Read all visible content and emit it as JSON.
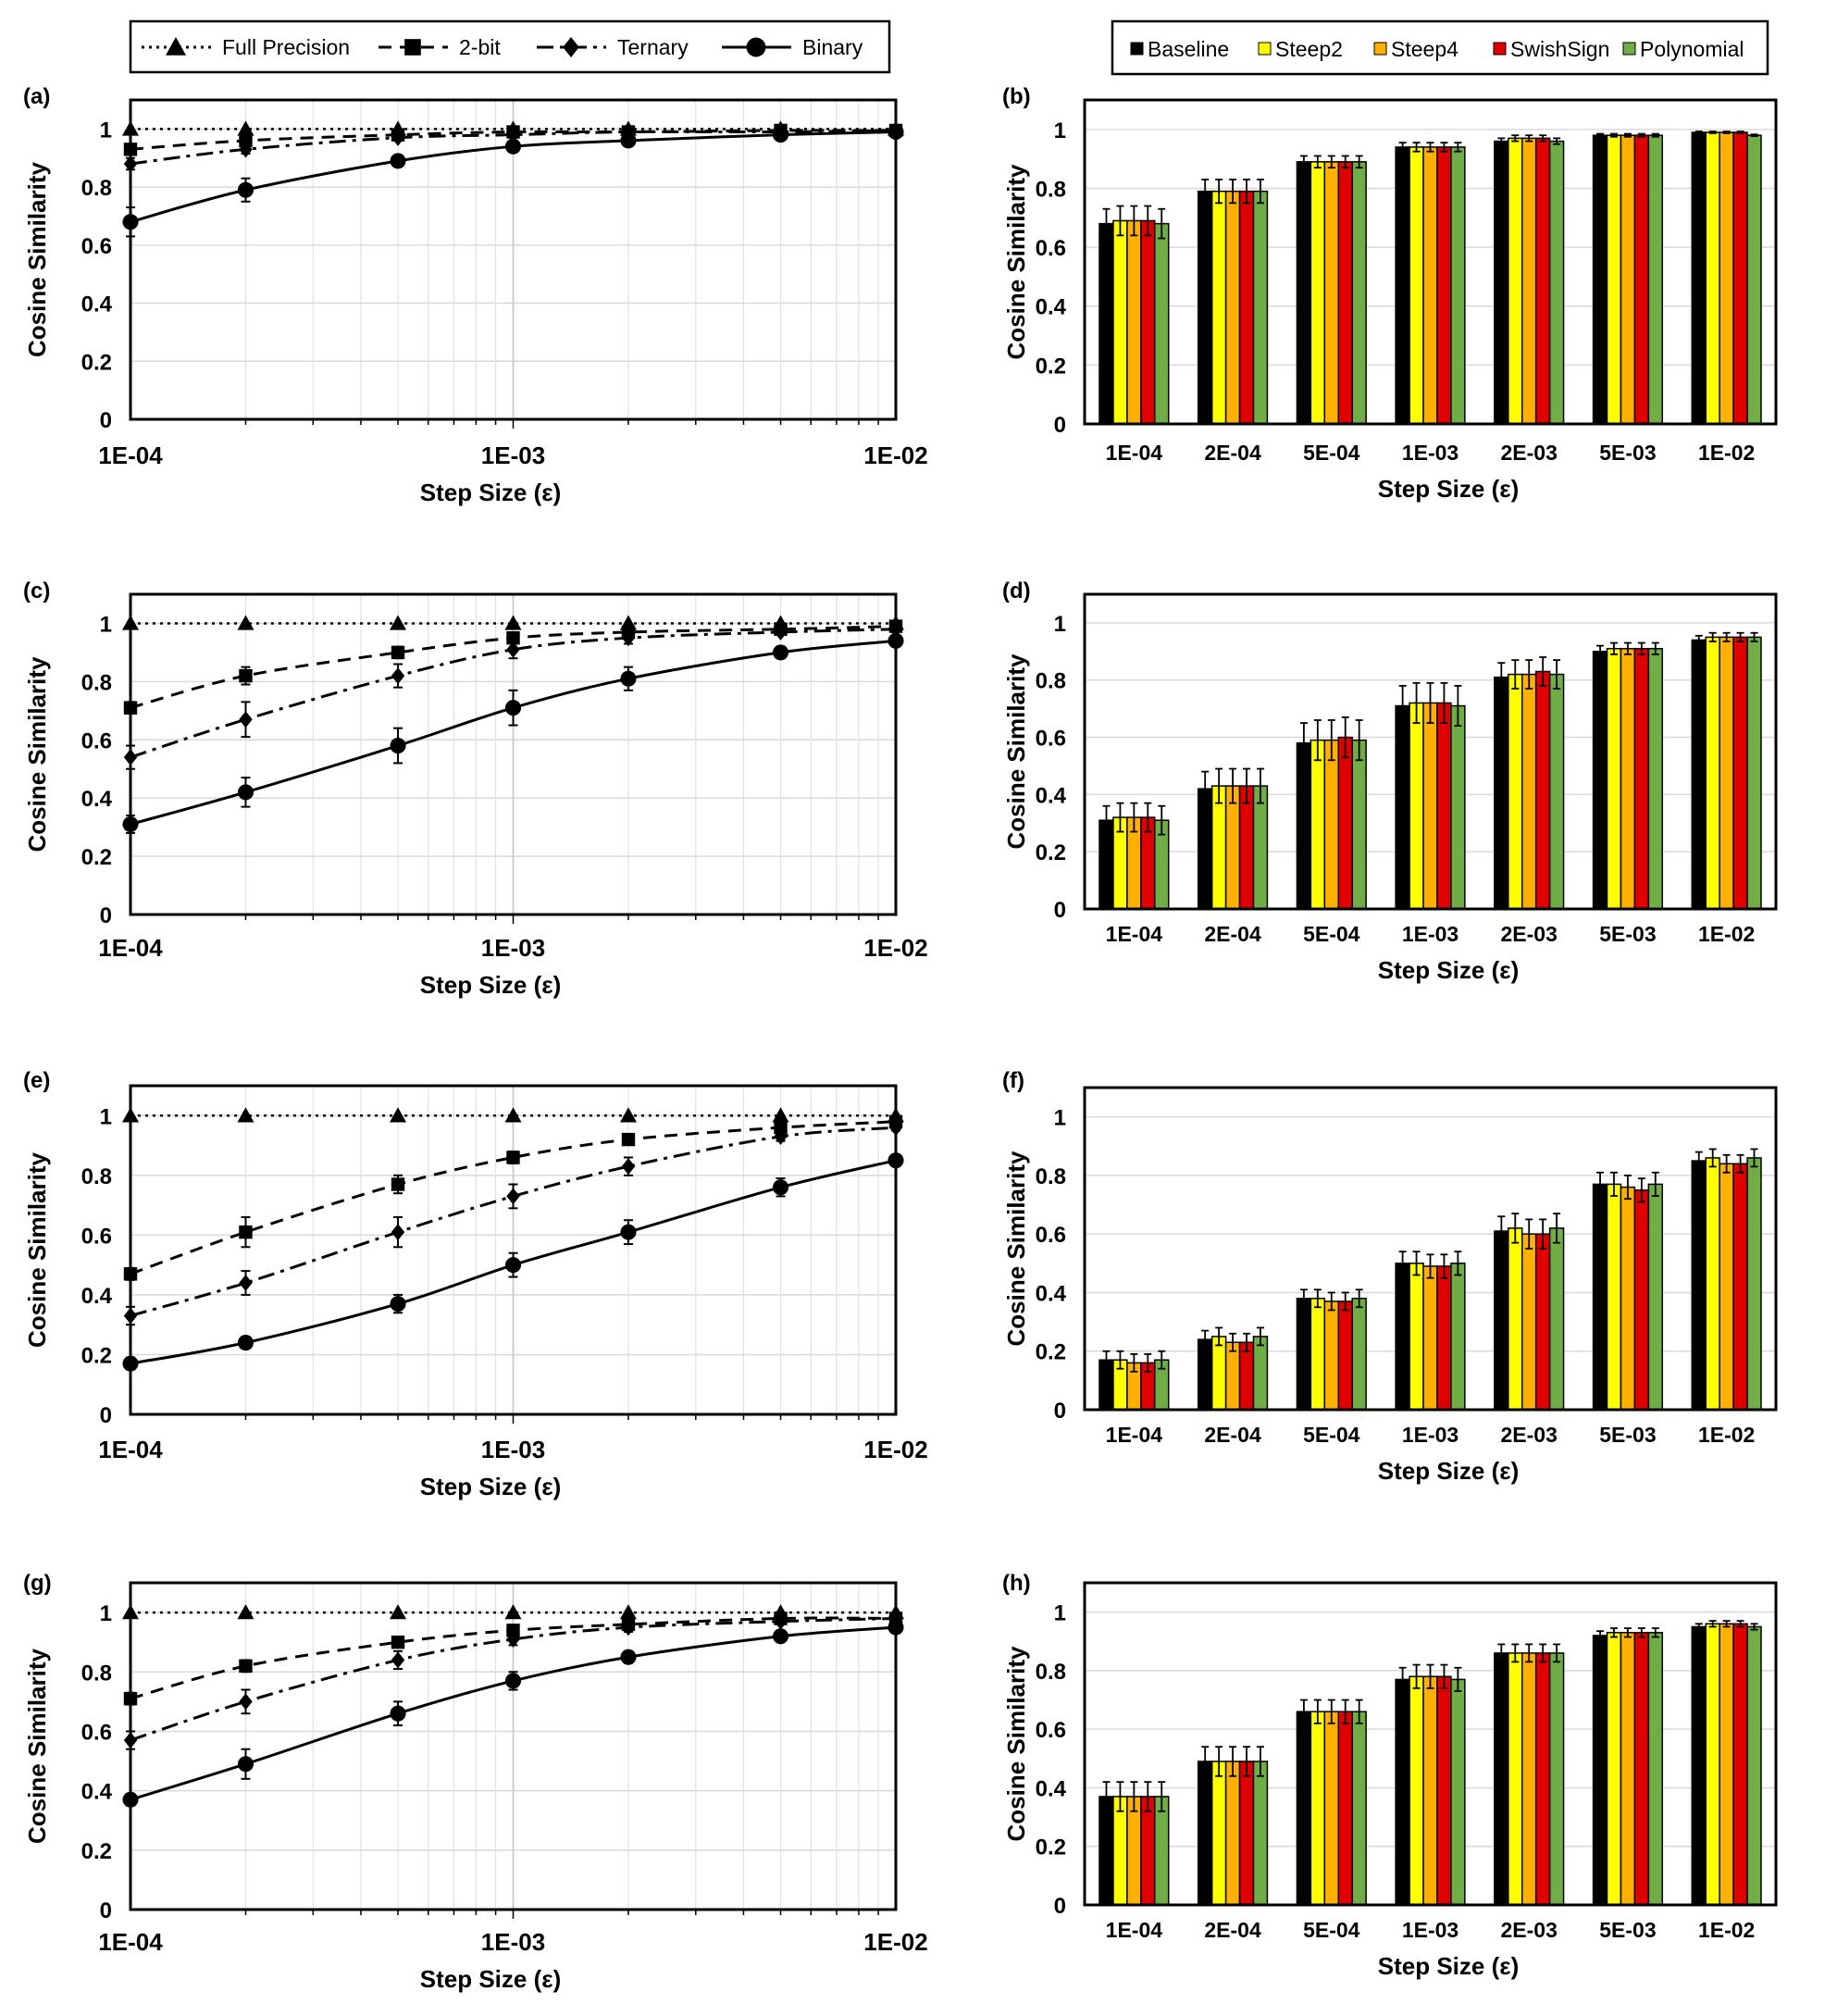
{
  "legends": {
    "lines": [
      {
        "name": "Full Precision",
        "marker": "triangle",
        "dash": "dotted"
      },
      {
        "name": "2-bit",
        "marker": "square",
        "dash": "dash"
      },
      {
        "name": "Ternary",
        "marker": "diamond",
        "dash": "dashdot"
      },
      {
        "name": "Binary",
        "marker": "circle",
        "dash": "solid"
      }
    ],
    "bars": [
      {
        "name": "Baseline",
        "color": "#000000"
      },
      {
        "name": "Steep2",
        "color": "#FFFF00"
      },
      {
        "name": "Steep4",
        "color": "#FFB000"
      },
      {
        "name": "SwishSign",
        "color": "#E00000"
      },
      {
        "name": "Polynomial",
        "color": "#70AD47"
      }
    ]
  },
  "chart_data": [
    {
      "panel": "(a)",
      "type": "line",
      "xscale": "log",
      "xlabel": "Step Size (ε)",
      "ylabel": "Cosine Similarity",
      "xlim": [
        0.0001,
        0.01
      ],
      "ylim": [
        0,
        1.1
      ],
      "xtick_labels": [
        "1E-04",
        "1E-03",
        "1E-02"
      ],
      "ytick_labels": [
        "0",
        "0.2",
        "0.4",
        "0.6",
        "0.8",
        "1"
      ],
      "grid": true,
      "x": [
        0.0001,
        0.0002,
        0.0005,
        0.001,
        0.002,
        0.005,
        0.01
      ],
      "series": [
        {
          "name": "Full Precision",
          "values": [
            1,
            1,
            1,
            1,
            1,
            1,
            1
          ],
          "err": [
            0,
            0,
            0,
            0,
            0,
            0,
            0
          ]
        },
        {
          "name": "2-bit",
          "values": [
            0.93,
            0.96,
            0.98,
            0.99,
            0.99,
            0.995,
            0.995
          ],
          "err": [
            0.01,
            0.01,
            0.005,
            0.005,
            0.003,
            0.002,
            0.002
          ]
        },
        {
          "name": "Ternary",
          "values": [
            0.88,
            0.93,
            0.97,
            0.98,
            0.99,
            0.99,
            0.995
          ],
          "err": [
            0.02,
            0.015,
            0.01,
            0.005,
            0.005,
            0.003,
            0.002
          ]
        },
        {
          "name": "Binary",
          "values": [
            0.68,
            0.79,
            0.89,
            0.94,
            0.96,
            0.98,
            0.99
          ],
          "err": [
            0.05,
            0.04,
            0.02,
            0.015,
            0.01,
            0.005,
            0.003
          ]
        }
      ]
    },
    {
      "panel": "(b)",
      "type": "bar",
      "xlabel": "Step Size (ε)",
      "ylabel": "Cosine Similarity",
      "ylim": [
        0,
        1.1
      ],
      "ytick_labels": [
        "0",
        "0.2",
        "0.4",
        "0.6",
        "0.8",
        "1"
      ],
      "grid": true,
      "categories": [
        "1E-04",
        "2E-04",
        "5E-04",
        "1E-03",
        "2E-03",
        "5E-03",
        "1E-02"
      ],
      "series": [
        {
          "name": "Baseline",
          "values": [
            0.68,
            0.79,
            0.89,
            0.94,
            0.96,
            0.98,
            0.99
          ],
          "err": [
            0.05,
            0.04,
            0.02,
            0.015,
            0.01,
            0.005,
            0.003
          ]
        },
        {
          "name": "Steep2",
          "values": [
            0.69,
            0.79,
            0.89,
            0.94,
            0.97,
            0.98,
            0.99
          ],
          "err": [
            0.05,
            0.04,
            0.02,
            0.015,
            0.01,
            0.005,
            0.003
          ]
        },
        {
          "name": "Steep4",
          "values": [
            0.69,
            0.79,
            0.89,
            0.94,
            0.97,
            0.98,
            0.99
          ],
          "err": [
            0.05,
            0.04,
            0.02,
            0.015,
            0.01,
            0.005,
            0.003
          ]
        },
        {
          "name": "SwishSign",
          "values": [
            0.69,
            0.79,
            0.89,
            0.94,
            0.97,
            0.98,
            0.99
          ],
          "err": [
            0.05,
            0.04,
            0.02,
            0.015,
            0.01,
            0.005,
            0.003
          ]
        },
        {
          "name": "Polynomial",
          "values": [
            0.68,
            0.79,
            0.89,
            0.94,
            0.96,
            0.98,
            0.98
          ],
          "err": [
            0.05,
            0.04,
            0.02,
            0.015,
            0.01,
            0.005,
            0.003
          ]
        }
      ]
    },
    {
      "panel": "(c)",
      "type": "line",
      "xscale": "log",
      "xlabel": "Step Size (ε)",
      "ylabel": "Cosine Similarity",
      "xlim": [
        0.0001,
        0.01
      ],
      "ylim": [
        0,
        1.1
      ],
      "xtick_labels": [
        "1E-04",
        "1E-03",
        "1E-02"
      ],
      "ytick_labels": [
        "0",
        "0.2",
        "0.4",
        "0.6",
        "0.8",
        "1"
      ],
      "grid": true,
      "x": [
        0.0001,
        0.0002,
        0.0005,
        0.001,
        0.002,
        0.005,
        0.01
      ],
      "series": [
        {
          "name": "Full Precision",
          "values": [
            1,
            1,
            1,
            1,
            1,
            1,
            1
          ],
          "err": [
            0,
            0,
            0,
            0,
            0,
            0,
            0
          ]
        },
        {
          "name": "2-bit",
          "values": [
            0.71,
            0.82,
            0.9,
            0.95,
            0.97,
            0.98,
            0.99
          ],
          "err": [
            0.02,
            0.03,
            0.02,
            0.015,
            0.01,
            0.005,
            0.003
          ]
        },
        {
          "name": "Ternary",
          "values": [
            0.54,
            0.67,
            0.82,
            0.91,
            0.95,
            0.97,
            0.98
          ],
          "err": [
            0.04,
            0.06,
            0.04,
            0.03,
            0.02,
            0.01,
            0.005
          ]
        },
        {
          "name": "Binary",
          "values": [
            0.31,
            0.42,
            0.58,
            0.71,
            0.81,
            0.9,
            0.94
          ],
          "err": [
            0.03,
            0.05,
            0.06,
            0.06,
            0.04,
            0.02,
            0.01
          ]
        }
      ]
    },
    {
      "panel": "(d)",
      "type": "bar",
      "xlabel": "Step Size (ε)",
      "ylabel": "Cosine Similarity",
      "ylim": [
        0,
        1.1
      ],
      "ytick_labels": [
        "0",
        "0.2",
        "0.4",
        "0.6",
        "0.8",
        "1"
      ],
      "grid": true,
      "categories": [
        "1E-04",
        "2E-04",
        "5E-04",
        "1E-03",
        "2E-03",
        "5E-03",
        "1E-02"
      ],
      "series": [
        {
          "name": "Baseline",
          "values": [
            0.31,
            0.42,
            0.58,
            0.71,
            0.81,
            0.9,
            0.94
          ],
          "err": [
            0.05,
            0.06,
            0.07,
            0.07,
            0.05,
            0.02,
            0.015
          ]
        },
        {
          "name": "Steep2",
          "values": [
            0.32,
            0.43,
            0.59,
            0.72,
            0.82,
            0.91,
            0.95
          ],
          "err": [
            0.05,
            0.06,
            0.07,
            0.07,
            0.05,
            0.02,
            0.015
          ]
        },
        {
          "name": "Steep4",
          "values": [
            0.32,
            0.43,
            0.59,
            0.72,
            0.82,
            0.91,
            0.95
          ],
          "err": [
            0.05,
            0.06,
            0.07,
            0.07,
            0.05,
            0.02,
            0.015
          ]
        },
        {
          "name": "SwishSign",
          "values": [
            0.32,
            0.43,
            0.6,
            0.72,
            0.83,
            0.91,
            0.95
          ],
          "err": [
            0.05,
            0.06,
            0.07,
            0.07,
            0.05,
            0.02,
            0.015
          ]
        },
        {
          "name": "Polynomial",
          "values": [
            0.31,
            0.43,
            0.59,
            0.71,
            0.82,
            0.91,
            0.95
          ],
          "err": [
            0.05,
            0.06,
            0.07,
            0.07,
            0.05,
            0.02,
            0.015
          ]
        }
      ]
    },
    {
      "panel": "(e)",
      "type": "line",
      "xscale": "log",
      "xlabel": "Step Size (ε)",
      "ylabel": "Cosine Similarity",
      "xlim": [
        0.0001,
        0.01
      ],
      "ylim": [
        0,
        1.1
      ],
      "xtick_labels": [
        "1E-04",
        "1E-03",
        "1E-02"
      ],
      "ytick_labels": [
        "0",
        "0.2",
        "0.4",
        "0.6",
        "0.8",
        "1"
      ],
      "grid": true,
      "x": [
        0.0001,
        0.0002,
        0.0005,
        0.001,
        0.002,
        0.005,
        0.01
      ],
      "series": [
        {
          "name": "Full Precision",
          "values": [
            1,
            1,
            1,
            1,
            1,
            1,
            1
          ],
          "err": [
            0,
            0,
            0,
            0,
            0,
            0,
            0
          ]
        },
        {
          "name": "2-bit",
          "values": [
            0.47,
            0.61,
            0.77,
            0.86,
            0.92,
            0.96,
            0.98
          ],
          "err": [
            0.02,
            0.05,
            0.03,
            0.02,
            0.015,
            0.01,
            0.005
          ]
        },
        {
          "name": "Ternary",
          "values": [
            0.33,
            0.44,
            0.61,
            0.73,
            0.83,
            0.93,
            0.96
          ],
          "err": [
            0.03,
            0.04,
            0.05,
            0.04,
            0.03,
            0.015,
            0.01
          ]
        },
        {
          "name": "Binary",
          "values": [
            0.17,
            0.24,
            0.37,
            0.5,
            0.61,
            0.76,
            0.85
          ],
          "err": [
            0.02,
            0.02,
            0.03,
            0.04,
            0.04,
            0.03,
            0.01
          ]
        }
      ]
    },
    {
      "panel": "(f)",
      "type": "bar",
      "xlabel": "Step Size (ε)",
      "ylabel": "Cosine Similarity",
      "ylim": [
        0,
        1.1
      ],
      "ytick_labels": [
        "0",
        "0.2",
        "0.4",
        "0.6",
        "0.8",
        "1"
      ],
      "grid": true,
      "categories": [
        "1E-04",
        "2E-04",
        "5E-04",
        "1E-03",
        "2E-03",
        "5E-03",
        "1E-02"
      ],
      "series": [
        {
          "name": "Baseline",
          "values": [
            0.17,
            0.24,
            0.38,
            0.5,
            0.61,
            0.77,
            0.85
          ],
          "err": [
            0.03,
            0.03,
            0.03,
            0.04,
            0.05,
            0.04,
            0.03
          ]
        },
        {
          "name": "Steep2",
          "values": [
            0.17,
            0.25,
            0.38,
            0.5,
            0.62,
            0.77,
            0.86
          ],
          "err": [
            0.03,
            0.03,
            0.03,
            0.04,
            0.05,
            0.04,
            0.03
          ]
        },
        {
          "name": "Steep4",
          "values": [
            0.16,
            0.23,
            0.37,
            0.49,
            0.6,
            0.76,
            0.84
          ],
          "err": [
            0.03,
            0.03,
            0.03,
            0.04,
            0.05,
            0.04,
            0.03
          ]
        },
        {
          "name": "SwishSign",
          "values": [
            0.16,
            0.23,
            0.37,
            0.49,
            0.6,
            0.75,
            0.84
          ],
          "err": [
            0.03,
            0.03,
            0.03,
            0.04,
            0.05,
            0.04,
            0.03
          ]
        },
        {
          "name": "Polynomial",
          "values": [
            0.17,
            0.25,
            0.38,
            0.5,
            0.62,
            0.77,
            0.86
          ],
          "err": [
            0.03,
            0.03,
            0.03,
            0.04,
            0.05,
            0.04,
            0.03
          ]
        }
      ]
    },
    {
      "panel": "(g)",
      "type": "line",
      "xscale": "log",
      "xlabel": "Step Size (ε)",
      "ylabel": "Cosine Similarity",
      "xlim": [
        0.0001,
        0.01
      ],
      "ylim": [
        0,
        1.1
      ],
      "xtick_labels": [
        "1E-04",
        "1E-03",
        "1E-02"
      ],
      "ytick_labels": [
        "0",
        "0.2",
        "0.4",
        "0.6",
        "0.8",
        "1"
      ],
      "grid": true,
      "x": [
        0.0001,
        0.0002,
        0.0005,
        0.001,
        0.002,
        0.005,
        0.01
      ],
      "series": [
        {
          "name": "Full Precision",
          "values": [
            1,
            1,
            1,
            1,
            1,
            1,
            1
          ],
          "err": [
            0,
            0,
            0,
            0,
            0,
            0,
            0
          ]
        },
        {
          "name": "2-bit",
          "values": [
            0.71,
            0.82,
            0.9,
            0.94,
            0.96,
            0.98,
            0.98
          ],
          "err": [
            0.02,
            0.02,
            0.015,
            0.01,
            0.01,
            0.005,
            0.003
          ]
        },
        {
          "name": "Ternary",
          "values": [
            0.57,
            0.7,
            0.84,
            0.91,
            0.95,
            0.97,
            0.98
          ],
          "err": [
            0.03,
            0.04,
            0.03,
            0.02,
            0.015,
            0.01,
            0.005
          ]
        },
        {
          "name": "Binary",
          "values": [
            0.37,
            0.49,
            0.66,
            0.77,
            0.85,
            0.92,
            0.95
          ],
          "err": [
            0.02,
            0.05,
            0.04,
            0.03,
            0.02,
            0.01,
            0.005
          ]
        }
      ]
    },
    {
      "panel": "(h)",
      "type": "bar",
      "xlabel": "Step Size (ε)",
      "ylabel": "Cosine Similarity",
      "ylim": [
        0,
        1.1
      ],
      "ytick_labels": [
        "0",
        "0.2",
        "0.4",
        "0.6",
        "0.8",
        "1"
      ],
      "grid": true,
      "categories": [
        "1E-04",
        "2E-04",
        "5E-04",
        "1E-03",
        "2E-03",
        "5E-03",
        "1E-02"
      ],
      "series": [
        {
          "name": "Baseline",
          "values": [
            0.37,
            0.49,
            0.66,
            0.77,
            0.86,
            0.92,
            0.95
          ],
          "err": [
            0.05,
            0.05,
            0.04,
            0.04,
            0.03,
            0.015,
            0.01
          ]
        },
        {
          "name": "Steep2",
          "values": [
            0.37,
            0.49,
            0.66,
            0.78,
            0.86,
            0.93,
            0.96
          ],
          "err": [
            0.05,
            0.05,
            0.04,
            0.04,
            0.03,
            0.015,
            0.01
          ]
        },
        {
          "name": "Steep4",
          "values": [
            0.37,
            0.49,
            0.66,
            0.78,
            0.86,
            0.93,
            0.96
          ],
          "err": [
            0.05,
            0.05,
            0.04,
            0.04,
            0.03,
            0.015,
            0.01
          ]
        },
        {
          "name": "SwishSign",
          "values": [
            0.37,
            0.49,
            0.66,
            0.78,
            0.86,
            0.93,
            0.96
          ],
          "err": [
            0.05,
            0.05,
            0.04,
            0.04,
            0.03,
            0.015,
            0.01
          ]
        },
        {
          "name": "Polynomial",
          "values": [
            0.37,
            0.49,
            0.66,
            0.77,
            0.86,
            0.93,
            0.95
          ],
          "err": [
            0.05,
            0.05,
            0.04,
            0.04,
            0.03,
            0.015,
            0.01
          ]
        }
      ]
    }
  ]
}
